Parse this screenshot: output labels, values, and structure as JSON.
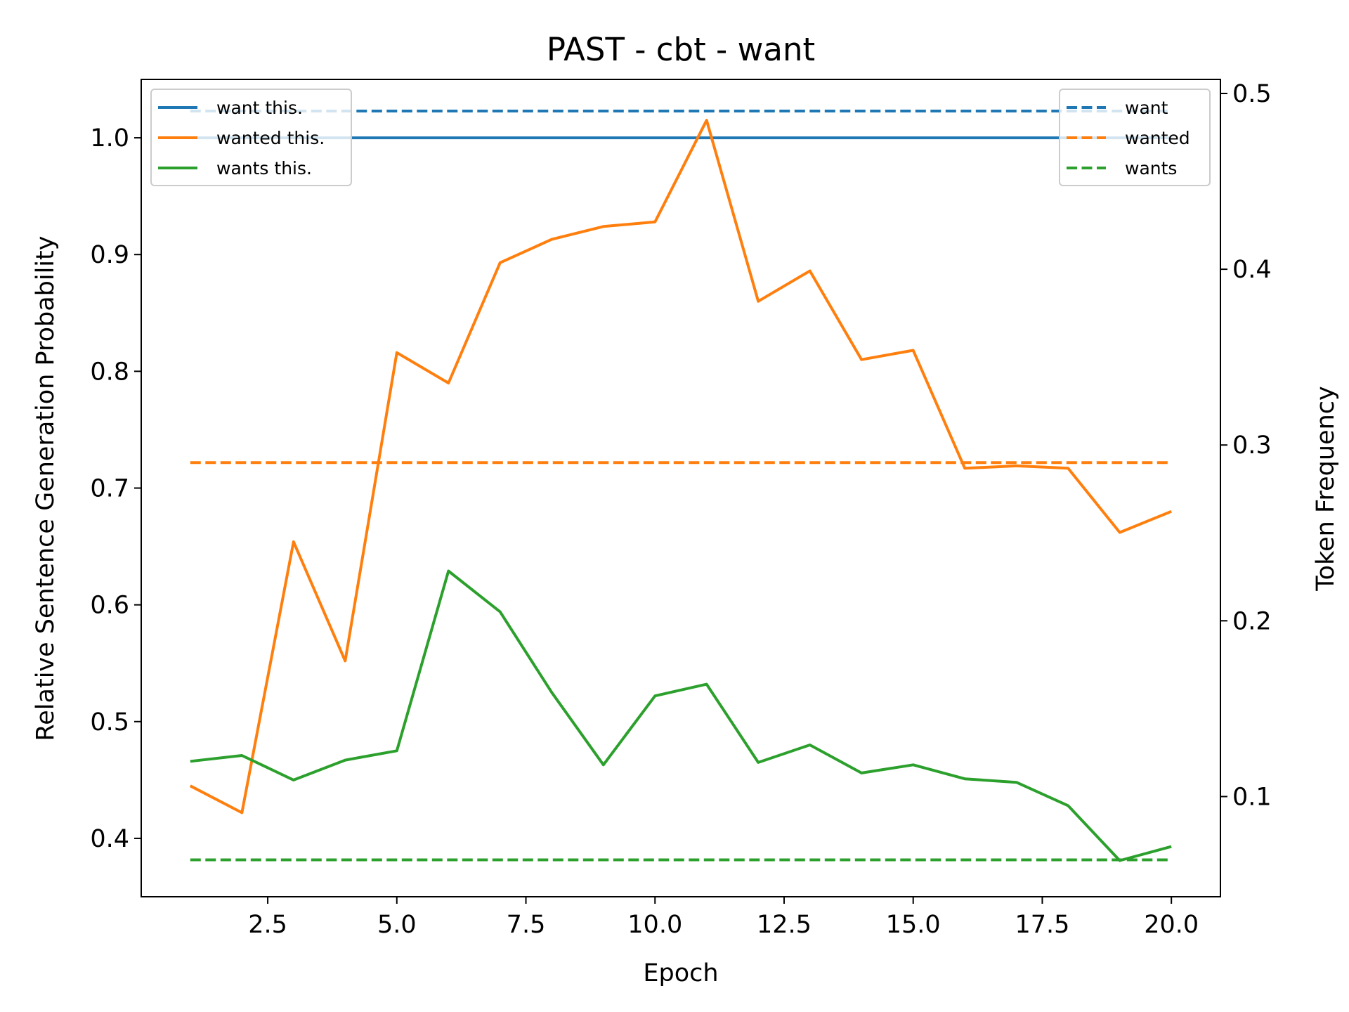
{
  "chart_data": {
    "type": "line",
    "title": "PAST - cbt - want",
    "xlabel": "Epoch",
    "ylabel": "Relative Sentence Generation Probability",
    "y2label": "Token Frequency",
    "x": [
      1,
      2,
      3,
      4,
      5,
      6,
      7,
      8,
      9,
      10,
      11,
      12,
      13,
      14,
      15,
      16,
      17,
      18,
      19,
      20
    ],
    "xlim": [
      0.05,
      20.95
    ],
    "ylim": [
      0.35,
      1.05
    ],
    "y2lim": [
      0.043,
      0.508
    ],
    "xticks": [
      {
        "value": 2.5,
        "label": "2.5"
      },
      {
        "value": 5.0,
        "label": "5.0"
      },
      {
        "value": 7.5,
        "label": "7.5"
      },
      {
        "value": 10.0,
        "label": "10.0"
      },
      {
        "value": 12.5,
        "label": "12.5"
      },
      {
        "value": 15.0,
        "label": "15.0"
      },
      {
        "value": 17.5,
        "label": "17.5"
      },
      {
        "value": 20.0,
        "label": "20.0"
      }
    ],
    "yticks": [
      {
        "value": 0.4,
        "label": "0.4"
      },
      {
        "value": 0.5,
        "label": "0.5"
      },
      {
        "value": 0.6,
        "label": "0.6"
      },
      {
        "value": 0.7,
        "label": "0.7"
      },
      {
        "value": 0.8,
        "label": "0.8"
      },
      {
        "value": 0.9,
        "label": "0.9"
      },
      {
        "value": 1.0,
        "label": "1.0"
      }
    ],
    "y2ticks": [
      {
        "value": 0.1,
        "label": "0.1"
      },
      {
        "value": 0.2,
        "label": "0.2"
      },
      {
        "value": 0.3,
        "label": "0.3"
      },
      {
        "value": 0.4,
        "label": "0.4"
      },
      {
        "value": 0.5,
        "label": "0.5"
      }
    ],
    "grid": false,
    "series": [
      {
        "name": "want this.",
        "axis": "left",
        "style": "solid",
        "color": "#1f77b4",
        "values": [
          1.0,
          1.0,
          1.0,
          1.0,
          1.0,
          1.0,
          1.0,
          1.0,
          1.0,
          1.0,
          1.0,
          1.0,
          1.0,
          1.0,
          1.0,
          1.0,
          1.0,
          1.0,
          1.0,
          1.0
        ]
      },
      {
        "name": "wanted this.",
        "axis": "left",
        "style": "solid",
        "color": "#ff7f0e",
        "values": [
          0.445,
          0.422,
          0.654,
          0.552,
          0.816,
          0.79,
          0.893,
          0.913,
          0.924,
          0.928,
          1.015,
          0.86,
          0.886,
          0.81,
          0.818,
          0.717,
          0.719,
          0.717,
          0.662,
          0.68
        ]
      },
      {
        "name": "wants this.",
        "axis": "left",
        "style": "solid",
        "color": "#2ca02c",
        "values": [
          0.466,
          0.471,
          0.45,
          0.467,
          0.475,
          0.629,
          0.594,
          0.525,
          0.463,
          0.522,
          0.532,
          0.465,
          0.48,
          0.456,
          0.463,
          0.451,
          0.448,
          0.428,
          0.381,
          0.393
        ]
      },
      {
        "name": "want",
        "axis": "right",
        "style": "dashed",
        "color": "#1f77b4",
        "values": [
          0.49,
          0.49,
          0.49,
          0.49,
          0.49,
          0.49,
          0.49,
          0.49,
          0.49,
          0.49,
          0.49,
          0.49,
          0.49,
          0.49,
          0.49,
          0.49,
          0.49,
          0.49,
          0.49,
          0.49
        ]
      },
      {
        "name": "wanted",
        "axis": "right",
        "style": "dashed",
        "color": "#ff7f0e",
        "values": [
          0.29,
          0.29,
          0.29,
          0.29,
          0.29,
          0.29,
          0.29,
          0.29,
          0.29,
          0.29,
          0.29,
          0.29,
          0.29,
          0.29,
          0.29,
          0.29,
          0.29,
          0.29,
          0.29,
          0.29
        ]
      },
      {
        "name": "wants",
        "axis": "right",
        "style": "dashed",
        "color": "#2ca02c",
        "values": [
          0.064,
          0.064,
          0.064,
          0.064,
          0.064,
          0.064,
          0.064,
          0.064,
          0.064,
          0.064,
          0.064,
          0.064,
          0.064,
          0.064,
          0.064,
          0.064,
          0.064,
          0.064,
          0.064,
          0.064
        ]
      }
    ],
    "legends": [
      {
        "placement": "top-left",
        "entries": [
          "want this.",
          "wanted this.",
          "wants this."
        ]
      },
      {
        "placement": "top-right",
        "entries": [
          "want",
          "wanted",
          "wants"
        ]
      }
    ]
  }
}
